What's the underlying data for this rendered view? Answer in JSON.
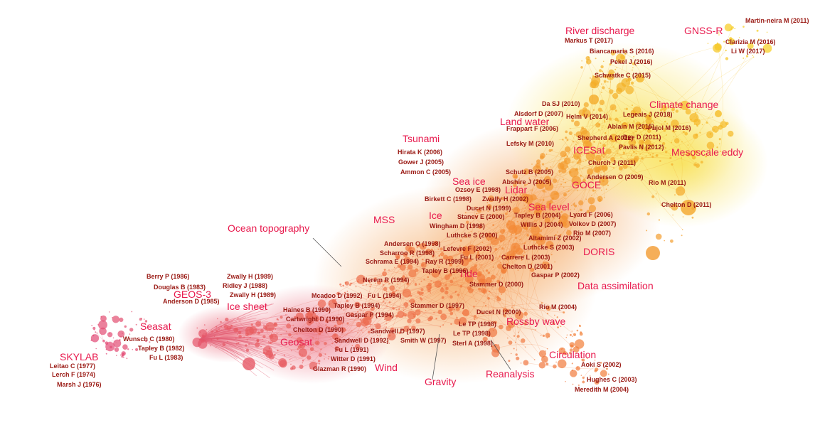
{
  "palette": {
    "topic_label": "#e8194d",
    "ref_label": "#9a1a14",
    "node_early": "#e0457a",
    "node_mid": "#f27c3a",
    "node_late": "#f6d51a"
  },
  "topics": [
    {
      "id": "river-discharge",
      "text": "River discharge"
    },
    {
      "id": "gnss-r",
      "text": "GNSS-R"
    },
    {
      "id": "climate-change",
      "text": "Climate change"
    },
    {
      "id": "land-water",
      "text": "Land water"
    },
    {
      "id": "icesat",
      "text": "ICESat"
    },
    {
      "id": "mesoscale-eddy",
      "text": "Mesoscale eddy"
    },
    {
      "id": "tsunami",
      "text": "Tsunami"
    },
    {
      "id": "goce",
      "text": "GOCE"
    },
    {
      "id": "sea-ice",
      "text": "Sea ice"
    },
    {
      "id": "lidar",
      "text": "Lidar"
    },
    {
      "id": "sea-level",
      "text": "Sea level"
    },
    {
      "id": "mss",
      "text": "MSS"
    },
    {
      "id": "ice",
      "text": "Ice"
    },
    {
      "id": "ocean-topography",
      "text": "Ocean topography"
    },
    {
      "id": "doris",
      "text": "DORIS"
    },
    {
      "id": "tide",
      "text": "Tide"
    },
    {
      "id": "data-assimilation",
      "text": "Data assimilation"
    },
    {
      "id": "geos-3",
      "text": "GEOS-3"
    },
    {
      "id": "ice-sheet",
      "text": "Ice sheet"
    },
    {
      "id": "seasat",
      "text": "Seasat"
    },
    {
      "id": "geosat",
      "text": "Geosat"
    },
    {
      "id": "rossby-wave",
      "text": "Rossby wave"
    },
    {
      "id": "skylab",
      "text": "SKYLAB"
    },
    {
      "id": "wind",
      "text": "Wind"
    },
    {
      "id": "gravity",
      "text": "Gravity"
    },
    {
      "id": "reanalysis",
      "text": "Reanalysis"
    },
    {
      "id": "circulation",
      "text": "Circulation"
    }
  ],
  "references": [
    {
      "text": "Martin-neira M (2011)"
    },
    {
      "text": "Markus T (2017)"
    },
    {
      "text": "Biancamaria S (2016)"
    },
    {
      "text": "Clarizia M (2016)"
    },
    {
      "text": "Li W (2017)"
    },
    {
      "text": "Pekel J (2016)"
    },
    {
      "text": "Schwatke C (2015)"
    },
    {
      "text": "Da SJ (2010)"
    },
    {
      "text": "Alsdorf D (2007)"
    },
    {
      "text": "Helm V (2014)"
    },
    {
      "text": "Legeais J (2018)"
    },
    {
      "text": "Ablain M (2015)"
    },
    {
      "text": "Pujol M (2016)"
    },
    {
      "text": "Frappart F (2006)"
    },
    {
      "text": "Shepherd A (2012)"
    },
    {
      "text": "Dee D (2011)"
    },
    {
      "text": "Lefsky M (2010)"
    },
    {
      "text": "Pavlis N (2012)"
    },
    {
      "text": "Hirata K (2006)"
    },
    {
      "text": "Gower J (2005)"
    },
    {
      "text": "Church J (2011)"
    },
    {
      "text": "Ammon C (2005)"
    },
    {
      "text": "Schutz B (2005)"
    },
    {
      "text": "Andersen O (2009)"
    },
    {
      "text": "Abshire J (2005)"
    },
    {
      "text": "Rio M (2011)"
    },
    {
      "text": "Ozsoy E (1998)"
    },
    {
      "text": "Zwally H (2002)"
    },
    {
      "text": "Birkett C (1998)"
    },
    {
      "text": "Ducet N (1999)"
    },
    {
      "text": "Chelton D (2011)"
    },
    {
      "text": "Stanev E (2000)"
    },
    {
      "text": "Tapley B (2004)"
    },
    {
      "text": "Lyard F (2006)"
    },
    {
      "text": "Wingham D (1998)"
    },
    {
      "text": "Willis J (2004)"
    },
    {
      "text": "Volkov D (2007)"
    },
    {
      "text": "Luthcke S (2000)"
    },
    {
      "text": "Rio M (2007)"
    },
    {
      "text": "Altamimi Z (2002)"
    },
    {
      "text": "Andersen O (1998)"
    },
    {
      "text": "Luthcke S (2003)"
    },
    {
      "text": "Scharroo R (1998)"
    },
    {
      "text": "Lefevre F (2002)"
    },
    {
      "text": "Fu L (2001)"
    },
    {
      "text": "Carrere L (2003)"
    },
    {
      "text": "Schrama E (1994)"
    },
    {
      "text": "Ray R (1999)"
    },
    {
      "text": "Chelton D (2001)"
    },
    {
      "text": "Tapley B (1996)"
    },
    {
      "text": "Berry P (1986)"
    },
    {
      "text": "Nerem R (1994)"
    },
    {
      "text": "Gaspar P (2002)"
    },
    {
      "text": "Zwally H (1989)"
    },
    {
      "text": "Douglas B (1983)"
    },
    {
      "text": "Ridley J (1988)"
    },
    {
      "text": "Stammer D (2000)"
    },
    {
      "text": "Zwally H (1989)"
    },
    {
      "text": "Mcadoo D (1992)"
    },
    {
      "text": "Fu L (1994)"
    },
    {
      "text": "Anderson D (1985)"
    },
    {
      "text": "Tapley B (1994)"
    },
    {
      "text": "Stammer D (1997)"
    },
    {
      "text": "Haines B (1990)"
    },
    {
      "text": "Gaspar P (1994)"
    },
    {
      "text": "Rio M (2004)"
    },
    {
      "text": "Ducet N (2000)"
    },
    {
      "text": "Cartwright D (1990)"
    },
    {
      "text": "Chelton D (1990)"
    },
    {
      "text": "Le TP (1998)"
    },
    {
      "text": "Sandwell D (1997)"
    },
    {
      "text": "Le TP (1998)"
    },
    {
      "text": "Wunsch C (1980)"
    },
    {
      "text": "Sandwell D (1992)"
    },
    {
      "text": "Smith W (1997)"
    },
    {
      "text": "Sterl A (1998)"
    },
    {
      "text": "Tapley B (1982)"
    },
    {
      "text": "Fu L (1991)"
    },
    {
      "text": "Fu L (1983)"
    },
    {
      "text": "Witter D (1991)"
    },
    {
      "text": "Aoki S (2002)"
    },
    {
      "text": "Leitao C (1977)"
    },
    {
      "text": "Glazman R (1990)"
    },
    {
      "text": "Lerch F (1974)"
    },
    {
      "text": "Hughes C (2003)"
    },
    {
      "text": "Marsh J (1976)"
    },
    {
      "text": "Meredith M (2004)"
    }
  ]
}
